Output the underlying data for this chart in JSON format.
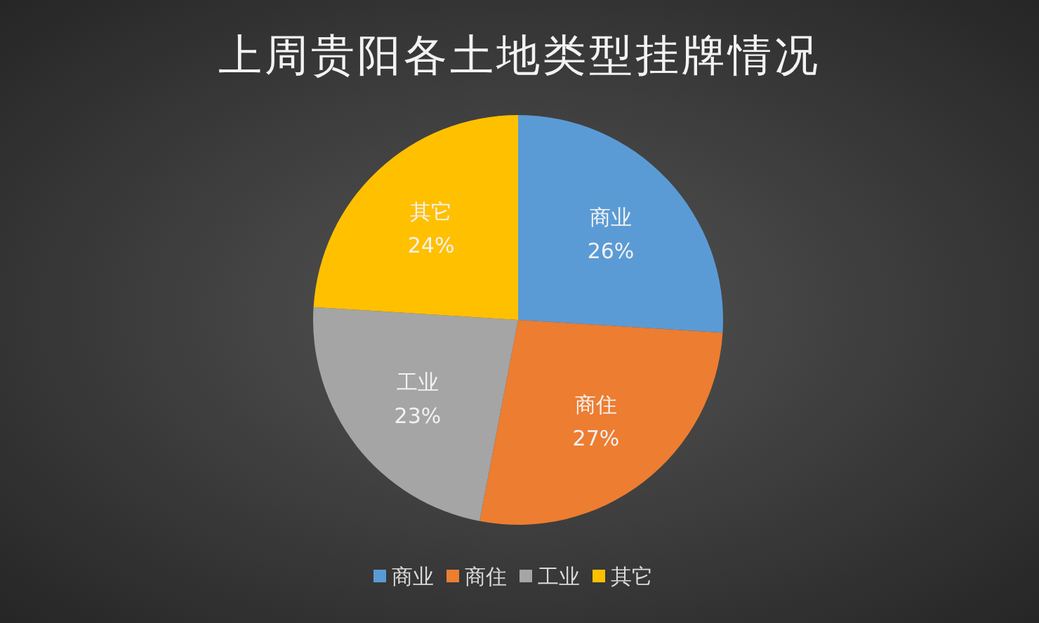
{
  "chart_data": {
    "type": "pie",
    "title": "上周贵阳各土地类型挂牌情况",
    "categories": [
      "商业",
      "商住",
      "工业",
      "其它"
    ],
    "values": [
      26,
      27,
      23,
      24
    ],
    "colors": [
      "#5b9bd5",
      "#ed7d31",
      "#a5a5a5",
      "#ffc000"
    ],
    "value_labels": [
      "26%",
      "27%",
      "23%",
      "24%"
    ],
    "legend": "bottom"
  }
}
